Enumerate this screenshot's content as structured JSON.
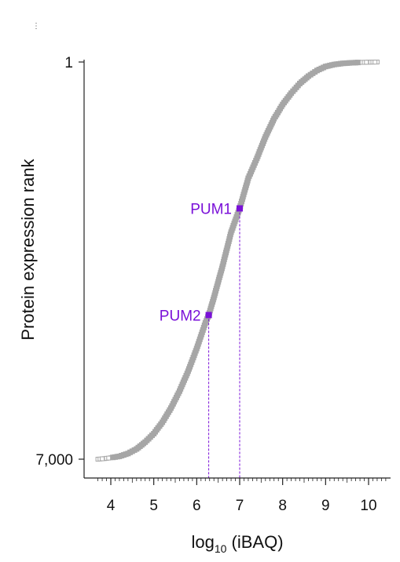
{
  "chart_data": {
    "type": "scatter",
    "title": "",
    "panel_mark": "⋮",
    "xlabel": "log",
    "xlabel_subscript": "10",
    "xlabel_suffix": " (iBAQ)",
    "ylabel": "Protein expression rank",
    "xlim": [
      3.6,
      10.5
    ],
    "ylim": [
      1,
      7000
    ],
    "y_inverted": true,
    "x_ticks": [
      4,
      5,
      6,
      7,
      8,
      9,
      10
    ],
    "x_tick_labels": [
      "4",
      "5",
      "6",
      "7",
      "8",
      "9",
      "10"
    ],
    "y_ticks": [
      1,
      7000
    ],
    "y_tick_labels": [
      "1",
      "7,000"
    ],
    "grid": false,
    "series": [
      {
        "marker": "square",
        "color": "#a6a6a6",
        "points": [
          [
            3.7,
            7000
          ],
          [
            3.85,
            6990
          ],
          [
            4.0,
            6975
          ],
          [
            4.2,
            6950
          ],
          [
            4.4,
            6900
          ],
          [
            4.6,
            6820
          ],
          [
            4.8,
            6700
          ],
          [
            5.0,
            6550
          ],
          [
            5.2,
            6350
          ],
          [
            5.4,
            6100
          ],
          [
            5.6,
            5800
          ],
          [
            5.8,
            5450
          ],
          [
            6.0,
            5050
          ],
          [
            6.2,
            4600
          ],
          [
            6.28,
            4460
          ],
          [
            6.4,
            4150
          ],
          [
            6.6,
            3600
          ],
          [
            6.8,
            3000
          ],
          [
            7.0,
            2580
          ],
          [
            7.2,
            2050
          ],
          [
            7.4,
            1700
          ],
          [
            7.6,
            1320
          ],
          [
            7.8,
            1000
          ],
          [
            8.0,
            750
          ],
          [
            8.2,
            550
          ],
          [
            8.4,
            380
          ],
          [
            8.6,
            250
          ],
          [
            8.8,
            150
          ],
          [
            9.0,
            80
          ],
          [
            9.2,
            45
          ],
          [
            9.4,
            25
          ],
          [
            9.6,
            15
          ],
          [
            9.8,
            8
          ],
          [
            10.0,
            4
          ],
          [
            10.2,
            1
          ]
        ]
      }
    ],
    "annotations": [
      {
        "label": "PUM1",
        "x": 7.0,
        "y": 2580,
        "color": "#7a10d8"
      },
      {
        "label": "PUM2",
        "x": 6.28,
        "y": 4460,
        "color": "#7a10d8"
      }
    ]
  }
}
